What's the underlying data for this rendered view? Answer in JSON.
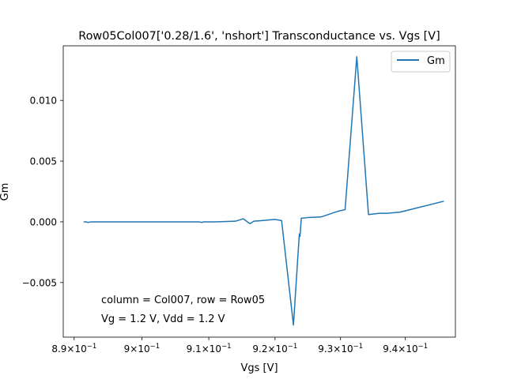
{
  "chart_data": {
    "type": "line",
    "title": "Row05Col007['0.28/1.6', 'nshort'] Transconductance vs. Vgs [V]",
    "xlabel": "Vgs [V]",
    "ylabel": "Gm",
    "xlim": [
      0.8884,
      0.9478
    ],
    "ylim": [
      -0.0095,
      0.0145
    ],
    "x_scale": "log",
    "x_ticks": [
      0.89,
      0.9,
      0.91,
      0.92,
      0.93,
      0.94
    ],
    "x_tick_labels": [
      {
        "base": "8.9",
        "exp": "−1"
      },
      {
        "base": "9",
        "exp": "−1"
      },
      {
        "base": "9.1",
        "exp": "−1"
      },
      {
        "base": "9.2",
        "exp": "−1"
      },
      {
        "base": "9.3",
        "exp": "−1"
      },
      {
        "base": "9.4",
        "exp": "−1"
      }
    ],
    "y_ticks": [
      -0.005,
      0.0,
      0.005,
      0.01
    ],
    "y_tick_labels": [
      "−0.005",
      "0.000",
      "0.005",
      "0.010"
    ],
    "grid": false,
    "legend_position": "top-right",
    "series": [
      {
        "name": "Gm",
        "color": "#1f77b4",
        "x": [
          0.8914,
          0.8918,
          0.892,
          0.8925,
          0.8935,
          0.896,
          0.9,
          0.905,
          0.9085,
          0.909,
          0.9092,
          0.911,
          0.914,
          0.9152,
          0.9162,
          0.9168,
          0.918,
          0.92,
          0.921,
          0.9228,
          0.9237,
          0.9238,
          0.924,
          0.925,
          0.927,
          0.9298,
          0.9307,
          0.9325,
          0.9343,
          0.936,
          0.9372,
          0.9392,
          0.946
        ],
        "y": [
          0.0,
          0.0,
          -5e-05,
          0.0,
          0.0,
          0.0,
          0.0,
          0.0,
          0.0,
          -5e-05,
          0.0,
          0.0,
          5e-05,
          0.00025,
          -0.00015,
          5e-05,
          0.0001,
          0.0002,
          0.0001,
          -0.0085,
          -0.001,
          -0.0012,
          0.0003,
          0.00035,
          0.0004,
          0.0009,
          0.001,
          0.0136,
          0.0006,
          0.0007,
          0.0007,
          0.0008,
          0.0017
        ]
      }
    ],
    "annotations": [
      "column = Col007, row = Row05",
      "Vg = 1.2 V, Vdd = 1.2 V"
    ]
  }
}
